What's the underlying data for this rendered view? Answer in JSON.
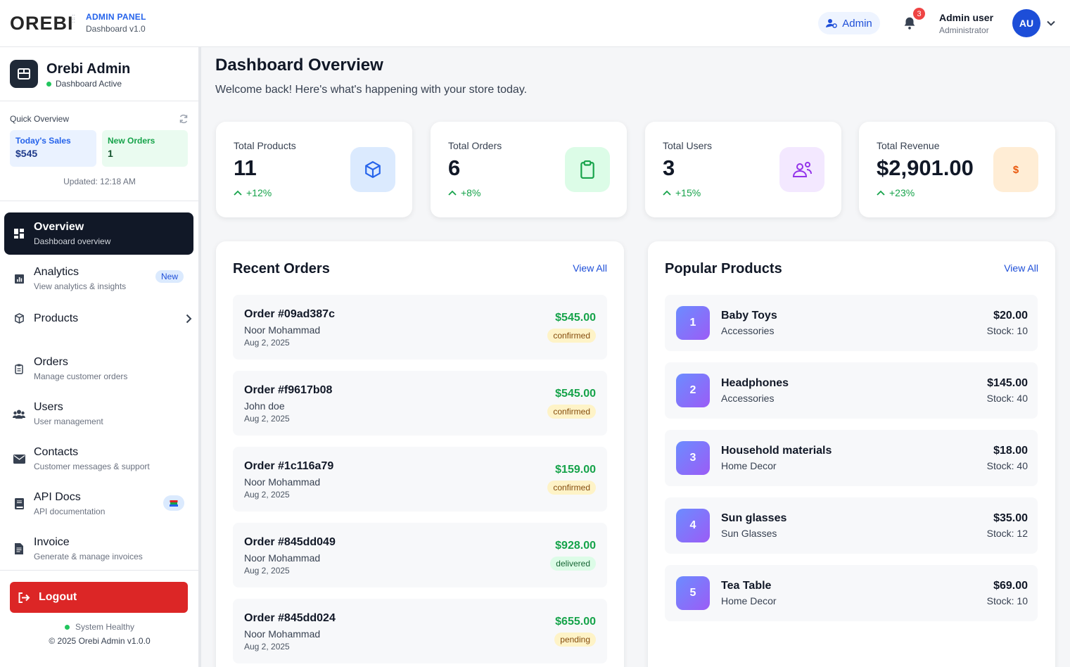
{
  "header": {
    "logo": "OREBI",
    "panel_tag": "ADMIN PANEL",
    "panel_version": "Dashboard v1.0",
    "role_button": "Admin",
    "notification_count": "3",
    "user_name": "Admin user",
    "user_role": "Administrator",
    "avatar_initials": "AU"
  },
  "sidebar": {
    "brand_title": "Orebi Admin",
    "brand_status": "Dashboard Active",
    "quick_overview": {
      "title": "Quick Overview",
      "sales_label": "Today's Sales",
      "sales_value": "$545",
      "orders_label": "New Orders",
      "orders_value": "1",
      "updated": "Updated: 12:18 AM"
    },
    "items": [
      {
        "title": "Overview",
        "subtitle": "Dashboard overview",
        "icon": "grid-icon"
      },
      {
        "title": "Analytics",
        "subtitle": "View analytics & insights",
        "badge": "New",
        "icon": "chart-icon"
      },
      {
        "title": "Products",
        "subtitle": "",
        "icon": "box-icon"
      },
      {
        "title": "Orders",
        "subtitle": "Manage customer orders",
        "icon": "clipboard-icon"
      },
      {
        "title": "Users",
        "subtitle": "User management",
        "icon": "users-icon"
      },
      {
        "title": "Contacts",
        "subtitle": "Customer messages & support",
        "icon": "envelope-icon"
      },
      {
        "title": "API Docs",
        "subtitle": "API documentation",
        "icon": "book-icon"
      },
      {
        "title": "Invoice",
        "subtitle": "Generate & manage invoices",
        "icon": "invoice-icon"
      }
    ],
    "logout": "Logout",
    "system_status": "System Healthy",
    "copyright": "© 2025 Orebi Admin v1.0.0"
  },
  "main": {
    "title": "Dashboard Overview",
    "subtitle": "Welcome back! Here's what's happening with your store today.",
    "stats": [
      {
        "label": "Total Products",
        "value": "11",
        "change": "+12%",
        "icon": "cube-icon",
        "accent": "#2563eb"
      },
      {
        "label": "Total Orders",
        "value": "6",
        "change": "+8%",
        "icon": "clipboard-icon",
        "accent": "#16a34a"
      },
      {
        "label": "Total Users",
        "value": "3",
        "change": "+15%",
        "icon": "users-icon",
        "accent": "#9333ea"
      },
      {
        "label": "Total Revenue",
        "value": "$2,901.00",
        "change": "+23%",
        "icon": "dollar-icon",
        "accent": "#ea580c"
      }
    ],
    "recent_orders": {
      "title": "Recent Orders",
      "view_all": "View All",
      "orders": [
        {
          "id": "Order #09ad387c",
          "customer": "Noor Mohammad",
          "date": "Aug 2, 2025",
          "amount": "$545.00",
          "status": "confirmed"
        },
        {
          "id": "Order #f9617b08",
          "customer": "John doe",
          "date": "Aug 2, 2025",
          "amount": "$545.00",
          "status": "confirmed"
        },
        {
          "id": "Order #1c116a79",
          "customer": "Noor Mohammad",
          "date": "Aug 2, 2025",
          "amount": "$159.00",
          "status": "confirmed"
        },
        {
          "id": "Order #845dd049",
          "customer": "Noor Mohammad",
          "date": "Aug 2, 2025",
          "amount": "$928.00",
          "status": "delivered"
        },
        {
          "id": "Order #845dd024",
          "customer": "Noor Mohammad",
          "date": "Aug 2, 2025",
          "amount": "$655.00",
          "status": "pending"
        }
      ]
    },
    "popular_products": {
      "title": "Popular Products",
      "view_all": "View All",
      "products": [
        {
          "rank": "1",
          "name": "Baby Toys",
          "category": "Accessories",
          "price": "$20.00",
          "stock": "Stock: 10"
        },
        {
          "rank": "2",
          "name": "Headphones",
          "category": "Accessories",
          "price": "$145.00",
          "stock": "Stock: 40"
        },
        {
          "rank": "3",
          "name": "Household materials",
          "category": "Home Decor",
          "price": "$18.00",
          "stock": "Stock: 40"
        },
        {
          "rank": "4",
          "name": "Sun glasses",
          "category": "Sun Glasses",
          "price": "$35.00",
          "stock": "Stock: 12"
        },
        {
          "rank": "5",
          "name": "Tea Table",
          "category": "Home Decor",
          "price": "$69.00",
          "stock": "Stock: 10"
        }
      ]
    }
  }
}
